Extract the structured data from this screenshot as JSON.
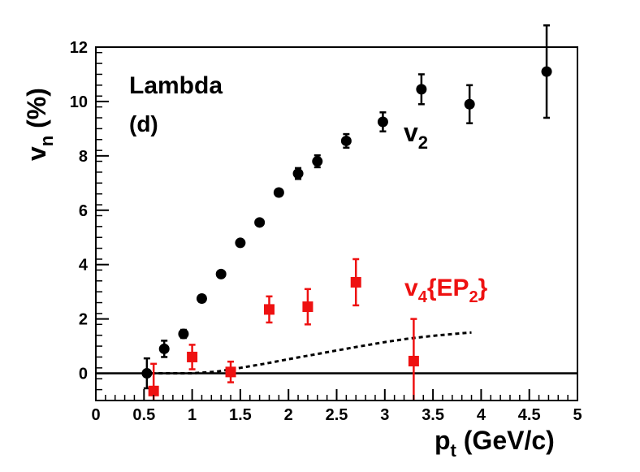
{
  "chart_data": {
    "type": "scatter",
    "title": "",
    "xlabel_main": "p",
    "xlabel_sub": "t",
    "xlabel_rest": " (GeV/c)",
    "ylabel_main": "v",
    "ylabel_sub": "n",
    "ylabel_rest": " (%)",
    "xlim": [
      0,
      5
    ],
    "ylim": [
      -1,
      12
    ],
    "x_ticks": [
      0,
      0.5,
      1,
      1.5,
      2,
      2.5,
      3,
      3.5,
      4,
      4.5,
      5
    ],
    "x_tick_labels": [
      "0",
      "0.5",
      "1",
      "1.5",
      "2",
      "2.5",
      "3",
      "3.5",
      "4",
      "4.5",
      "5"
    ],
    "y_ticks": [
      0,
      2,
      4,
      6,
      8,
      10,
      12
    ],
    "y_tick_labels": [
      "0",
      "2",
      "4",
      "6",
      "8",
      "10",
      "12"
    ],
    "zero_line": 0,
    "annotations": {
      "particle": "Lambda",
      "panel": "(d)",
      "v2_label_main": "v",
      "v2_label_sub": "2",
      "v4_label_main": "v",
      "v4_label_sub": "4",
      "v4_label_brace_open": "{EP",
      "v4_label_brace_sub": "2",
      "v4_label_brace_close": "}"
    },
    "series": [
      {
        "name": "v2",
        "marker": "circle",
        "color": "#000000",
        "points": [
          {
            "x": 0.53,
            "y": 0.0,
            "err": 0.55
          },
          {
            "x": 0.71,
            "y": 0.9,
            "err": 0.3
          },
          {
            "x": 0.91,
            "y": 1.45,
            "err": 0.15
          },
          {
            "x": 1.1,
            "y": 2.75,
            "err": 0.12
          },
          {
            "x": 1.3,
            "y": 3.65,
            "err": 0.1
          },
          {
            "x": 1.5,
            "y": 4.8,
            "err": 0.1
          },
          {
            "x": 1.7,
            "y": 5.55,
            "err": 0.1
          },
          {
            "x": 1.9,
            "y": 6.65,
            "err": 0.12
          },
          {
            "x": 2.1,
            "y": 7.35,
            "err": 0.2
          },
          {
            "x": 2.3,
            "y": 7.8,
            "err": 0.22
          },
          {
            "x": 2.6,
            "y": 8.55,
            "err": 0.25
          },
          {
            "x": 2.98,
            "y": 9.25,
            "err": 0.35
          },
          {
            "x": 3.38,
            "y": 10.45,
            "err": 0.55
          },
          {
            "x": 3.88,
            "y": 9.9,
            "err": 0.7
          },
          {
            "x": 4.68,
            "y": 11.1,
            "err": 1.7
          }
        ]
      },
      {
        "name": "v4{EP2}",
        "marker": "square",
        "color": "#ee1111",
        "points": [
          {
            "x": 0.6,
            "y": -0.65,
            "err": 1.0
          },
          {
            "x": 1.0,
            "y": 0.6,
            "err": 0.45
          },
          {
            "x": 1.4,
            "y": 0.05,
            "err": 0.38
          },
          {
            "x": 1.8,
            "y": 2.35,
            "err": 0.48
          },
          {
            "x": 2.2,
            "y": 2.45,
            "err": 0.65
          },
          {
            "x": 2.7,
            "y": 3.35,
            "err": 0.85
          },
          {
            "x": 3.3,
            "y": 0.45,
            "err": 1.55
          }
        ]
      },
      {
        "name": "model",
        "style": "dashed-curve",
        "color": "#000000",
        "x": [
          0.5,
          1.0,
          1.25,
          1.5,
          1.75,
          2.0,
          2.25,
          2.5,
          2.75,
          3.0,
          3.25,
          3.5,
          3.75,
          3.9
        ],
        "values": [
          0.0,
          0.0,
          0.06,
          0.2,
          0.35,
          0.52,
          0.68,
          0.84,
          1.0,
          1.15,
          1.28,
          1.38,
          1.46,
          1.5
        ]
      }
    ]
  }
}
